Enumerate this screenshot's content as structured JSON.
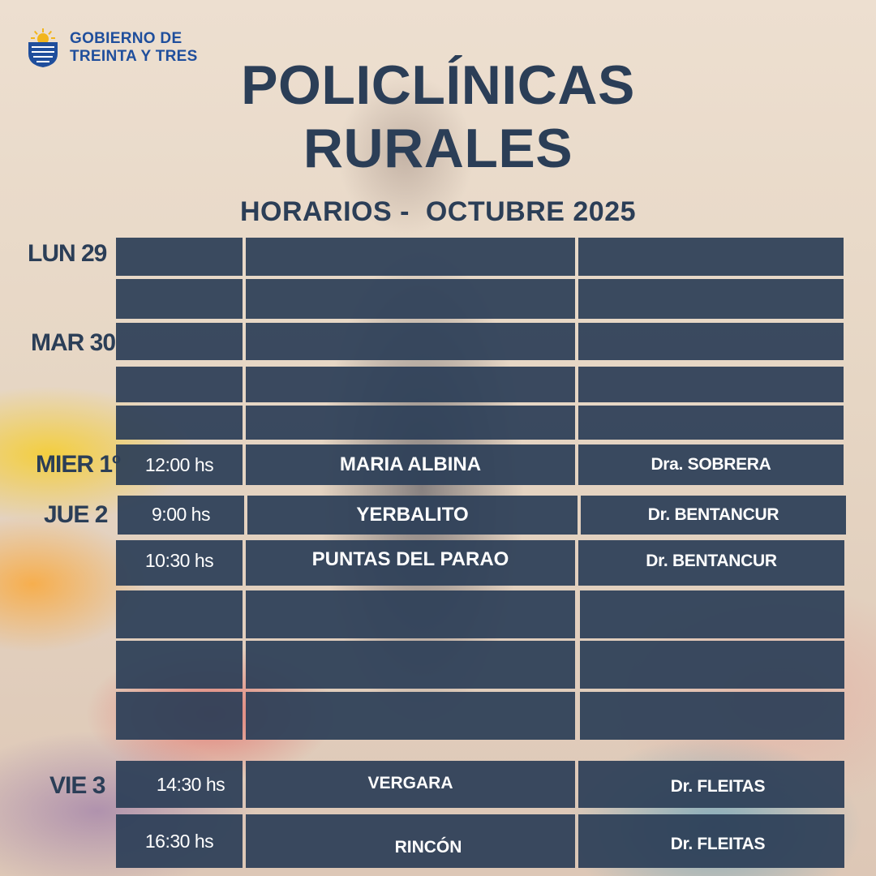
{
  "header": {
    "logo_line1": "GOBIERNO DE",
    "logo_line2": "TREINTA Y TRES",
    "title_line1": "POLICLÍNICAS",
    "title_line2": "RURALES",
    "subtitle": "HORARIOS -  OCTUBRE 2025"
  },
  "days": {
    "lun": "LUN 29",
    "mar": "MAR 30",
    "mier": "MIER 1º",
    "jue": "JUE 2",
    "vie": "VIE 3"
  },
  "rows": {
    "r6": {
      "time": "12:00 hs",
      "place": "MARIA ALBINA",
      "doctor": "Dra. SOBRERA"
    },
    "r7": {
      "time": "9:00 hs",
      "place": "YERBALITO",
      "doctor": "Dr. BENTANCUR"
    },
    "r8": {
      "time": "10:30 hs",
      "place": "PUNTAS DEL PARAO",
      "doctor": "Dr. BENTANCUR"
    },
    "r12": {
      "time": "14:30 hs",
      "place": "VERGARA",
      "doctor": "Dr.  FLEITAS"
    },
    "r13": {
      "time": "16:30 hs",
      "place": "RINCÓN",
      "doctor": "Dr. FLEITAS"
    }
  },
  "colors": {
    "navy_text": "#2b3e57",
    "cell_bg": "#2c3e57",
    "logo_blue": "#1f4e9c"
  }
}
